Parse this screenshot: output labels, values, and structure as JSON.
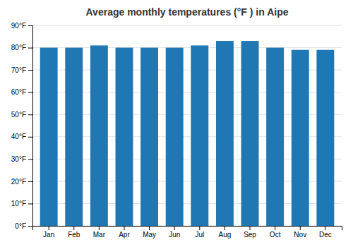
{
  "chart_data": {
    "type": "bar",
    "title": "Average monthly temperatures (°F ) in Aipe",
    "categories": [
      "Jan",
      "Feb",
      "Mar",
      "Apr",
      "May",
      "Jun",
      "Jul",
      "Aug",
      "Sep",
      "Oct",
      "Nov",
      "Dec"
    ],
    "values": [
      80,
      80,
      81,
      80,
      80,
      80,
      81,
      83,
      83,
      80,
      79,
      79
    ],
    "ylim": [
      0,
      90
    ],
    "yticks": [
      {
        "value": 0,
        "label": "0°F"
      },
      {
        "value": 10,
        "label": "10°F"
      },
      {
        "value": 20,
        "label": "20°F"
      },
      {
        "value": 30,
        "label": "30°F"
      },
      {
        "value": 40,
        "label": "40°F"
      },
      {
        "value": 50,
        "label": "50°F"
      },
      {
        "value": 60,
        "label": "60°F"
      },
      {
        "value": 70,
        "label": "70°F"
      },
      {
        "value": 80,
        "label": "80°F"
      },
      {
        "value": 90,
        "label": "90°F"
      }
    ],
    "grid": true
  }
}
